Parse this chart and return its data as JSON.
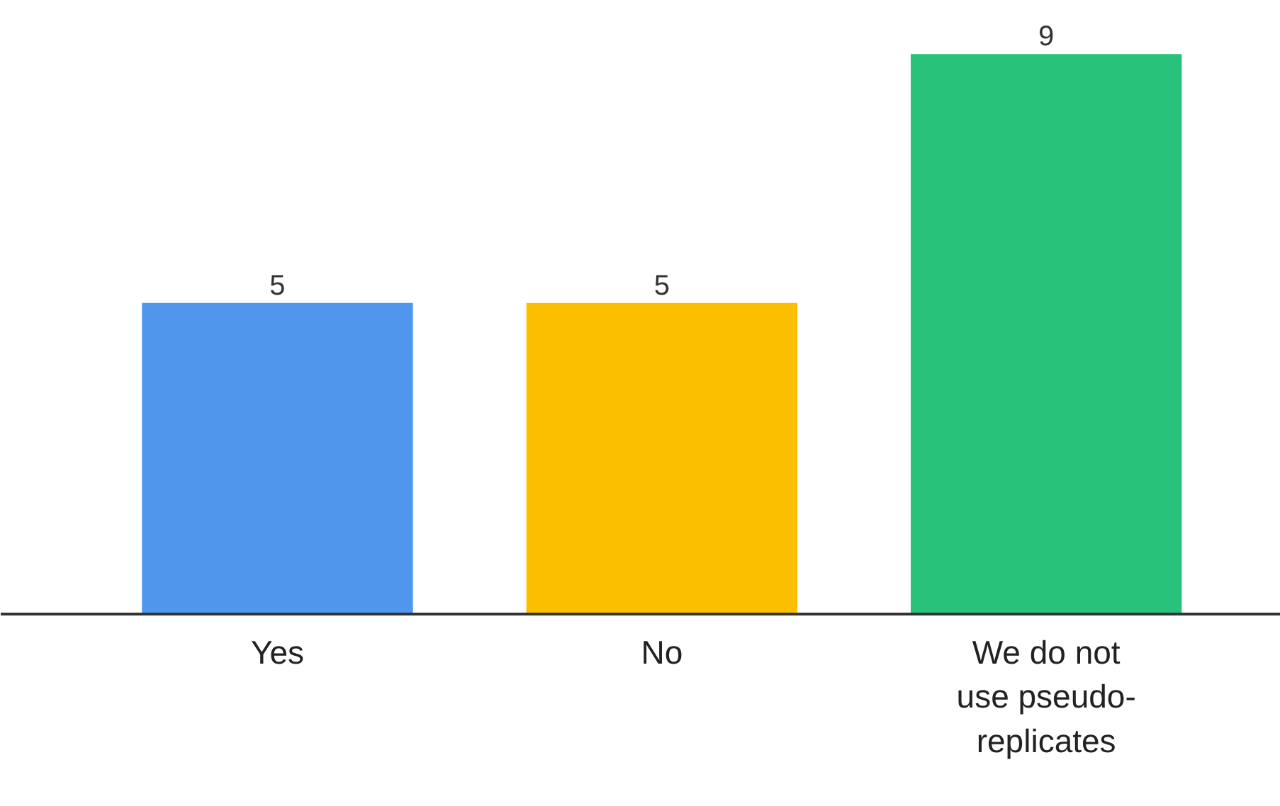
{
  "chart_data": {
    "type": "bar",
    "categories": [
      "Yes",
      "No",
      "We do not use pseudo-replicates"
    ],
    "values": [
      5,
      5,
      9
    ],
    "colors": [
      "#4f96ed",
      "#fbbf00",
      "#29c27b"
    ],
    "data_labels": true,
    "grid": false
  }
}
